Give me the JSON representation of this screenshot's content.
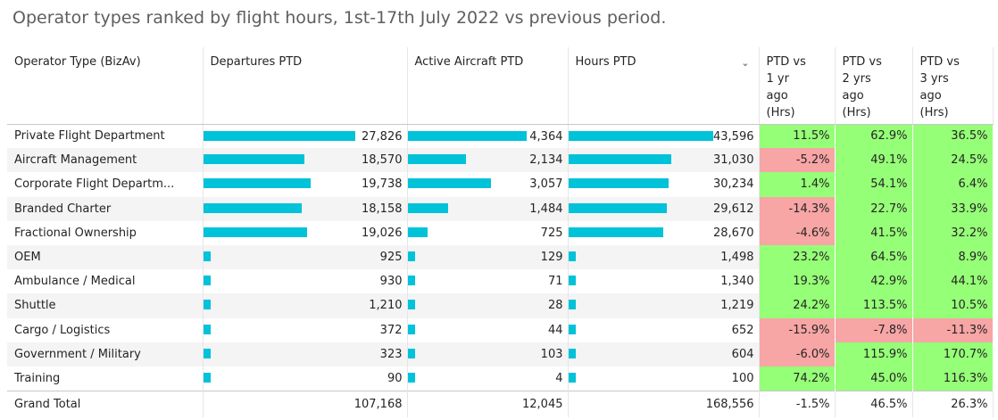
{
  "title": "Operator types ranked by flight hours, 1st-17th July 2022 vs previous period.",
  "columns": {
    "operator": "Operator Type (BizAv)",
    "departures": "Departures PTD",
    "aircraft": "Active Aircraft PTD",
    "hours": "Hours PTD",
    "pct1": "PTD vs\n1 yr\nago\n(Hrs)",
    "pct2": "PTD vs\n2 yrs\nago\n(Hrs)",
    "pct3": "PTD vs\n3 yrs\nago\n(Hrs)"
  },
  "sort_icon": "chevron-down-icon",
  "colors": {
    "bar": "#00c2d9",
    "positive": "#96ff78",
    "negative": "#f7a5a5"
  },
  "chart_data": {
    "type": "table",
    "title": "Operator types ranked by flight hours, 1st-17th July 2022 vs previous period.",
    "sorted_by": "Hours PTD",
    "sort_direction": "descending",
    "rows": [
      {
        "operator": "Private Flight Department",
        "departures": 27826,
        "departures_text": "27,826",
        "aircraft": 4364,
        "aircraft_text": "4,364",
        "hours": 43596,
        "hours_text": "43,596",
        "pct1": 11.5,
        "pct1_text": "11.5%",
        "pct2": 62.9,
        "pct2_text": "62.9%",
        "pct3": 36.5,
        "pct3_text": "36.5%"
      },
      {
        "operator": "Aircraft Management",
        "departures": 18570,
        "departures_text": "18,570",
        "aircraft": 2134,
        "aircraft_text": "2,134",
        "hours": 31030,
        "hours_text": "31,030",
        "pct1": -5.2,
        "pct1_text": "-5.2%",
        "pct2": 49.1,
        "pct2_text": "49.1%",
        "pct3": 24.5,
        "pct3_text": "24.5%"
      },
      {
        "operator": "Corporate Flight Departm...",
        "departures": 19738,
        "departures_text": "19,738",
        "aircraft": 3057,
        "aircraft_text": "3,057",
        "hours": 30234,
        "hours_text": "30,234",
        "pct1": 1.4,
        "pct1_text": "1.4%",
        "pct2": 54.1,
        "pct2_text": "54.1%",
        "pct3": 6.4,
        "pct3_text": "6.4%"
      },
      {
        "operator": "Branded Charter",
        "departures": 18158,
        "departures_text": "18,158",
        "aircraft": 1484,
        "aircraft_text": "1,484",
        "hours": 29612,
        "hours_text": "29,612",
        "pct1": -14.3,
        "pct1_text": "-14.3%",
        "pct2": 22.7,
        "pct2_text": "22.7%",
        "pct3": 33.9,
        "pct3_text": "33.9%"
      },
      {
        "operator": "Fractional Ownership",
        "departures": 19026,
        "departures_text": "19,026",
        "aircraft": 725,
        "aircraft_text": "725",
        "hours": 28670,
        "hours_text": "28,670",
        "pct1": -4.6,
        "pct1_text": "-4.6%",
        "pct2": 41.5,
        "pct2_text": "41.5%",
        "pct3": 32.2,
        "pct3_text": "32.2%"
      },
      {
        "operator": "OEM",
        "departures": 925,
        "departures_text": "925",
        "aircraft": 129,
        "aircraft_text": "129",
        "hours": 1498,
        "hours_text": "1,498",
        "pct1": 23.2,
        "pct1_text": "23.2%",
        "pct2": 64.5,
        "pct2_text": "64.5%",
        "pct3": 8.9,
        "pct3_text": "8.9%"
      },
      {
        "operator": "Ambulance / Medical",
        "departures": 930,
        "departures_text": "930",
        "aircraft": 71,
        "aircraft_text": "71",
        "hours": 1340,
        "hours_text": "1,340",
        "pct1": 19.3,
        "pct1_text": "19.3%",
        "pct2": 42.9,
        "pct2_text": "42.9%",
        "pct3": 44.1,
        "pct3_text": "44.1%"
      },
      {
        "operator": "Shuttle",
        "departures": 1210,
        "departures_text": "1,210",
        "aircraft": 28,
        "aircraft_text": "28",
        "hours": 1219,
        "hours_text": "1,219",
        "pct1": 24.2,
        "pct1_text": "24.2%",
        "pct2": 113.5,
        "pct2_text": "113.5%",
        "pct3": 10.5,
        "pct3_text": "10.5%"
      },
      {
        "operator": "Cargo / Logistics",
        "departures": 372,
        "departures_text": "372",
        "aircraft": 44,
        "aircraft_text": "44",
        "hours": 652,
        "hours_text": "652",
        "pct1": -15.9,
        "pct1_text": "-15.9%",
        "pct2": -7.8,
        "pct2_text": "-7.8%",
        "pct3": -11.3,
        "pct3_text": "-11.3%"
      },
      {
        "operator": "Government / Military",
        "departures": 323,
        "departures_text": "323",
        "aircraft": 103,
        "aircraft_text": "103",
        "hours": 604,
        "hours_text": "604",
        "pct1": -6.0,
        "pct1_text": "-6.0%",
        "pct2": 115.9,
        "pct2_text": "115.9%",
        "pct3": 170.7,
        "pct3_text": "170.7%"
      },
      {
        "operator": "Training",
        "departures": 90,
        "departures_text": "90",
        "aircraft": 4,
        "aircraft_text": "4",
        "hours": 100,
        "hours_text": "100",
        "pct1": 74.2,
        "pct1_text": "74.2%",
        "pct2": 45.0,
        "pct2_text": "45.0%",
        "pct3": 116.3,
        "pct3_text": "116.3%"
      }
    ],
    "total": {
      "operator": "Grand Total",
      "departures": "107,168",
      "aircraft": "12,045",
      "hours": "168,556",
      "pct1": "-1.5%",
      "pct2": "46.5%",
      "pct3": "26.3%"
    }
  }
}
